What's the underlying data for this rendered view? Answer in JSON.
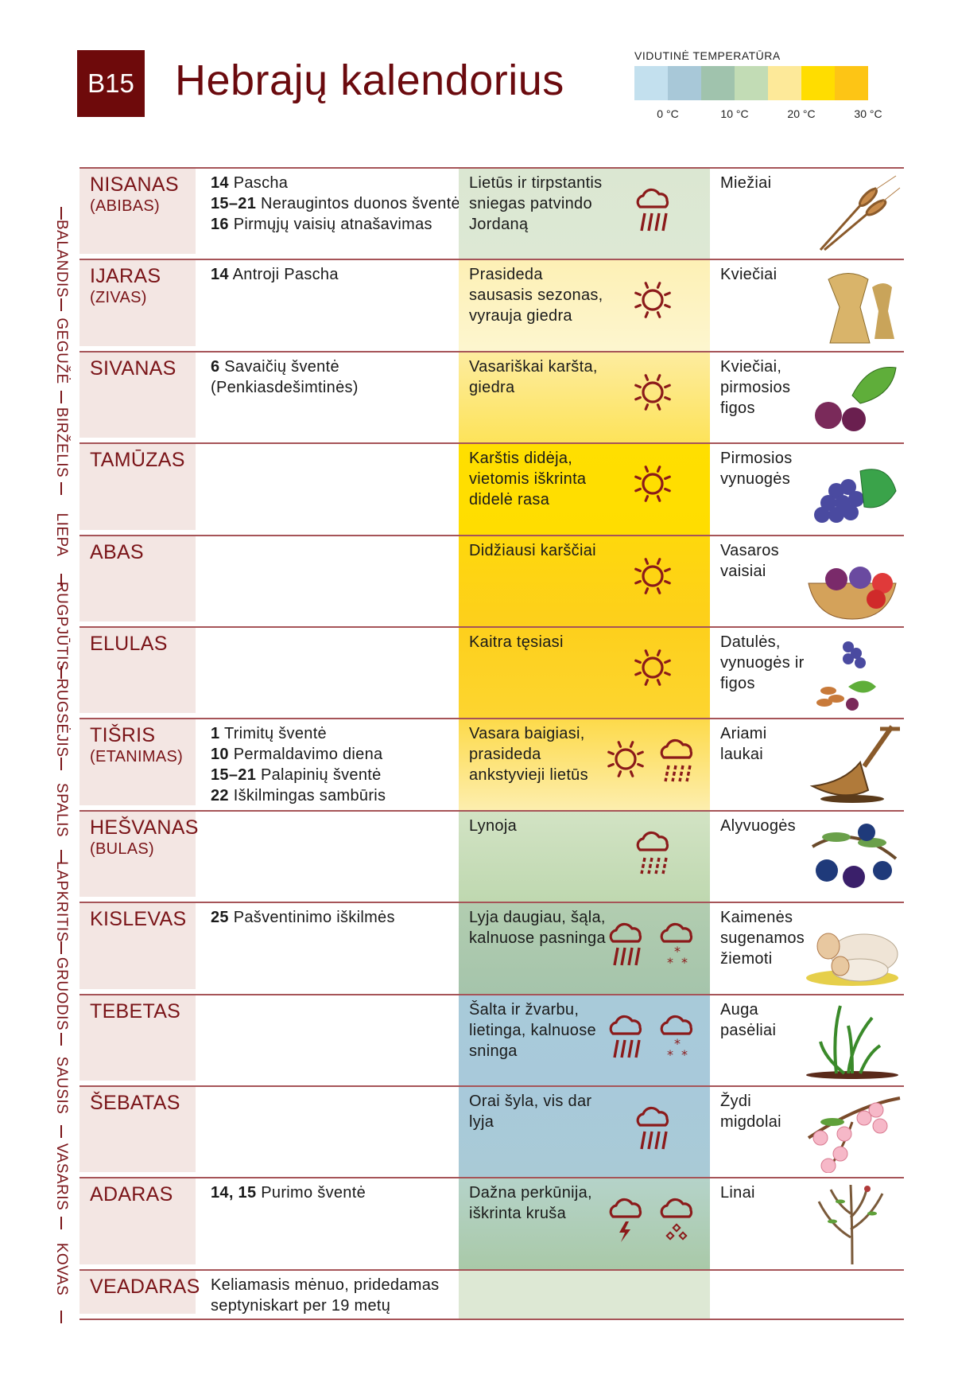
{
  "header": {
    "badge": "B15",
    "title": "Hebrajų kalendorius"
  },
  "legend": {
    "label": "VIDUTINĖ TEMPERATŪRA",
    "colors": [
      "#c3e0ee",
      "#a8c8d8",
      "#a0c3ad",
      "#c2dcb5",
      "#fde999",
      "#ffdd00",
      "#fdc515"
    ],
    "ticks": [
      "0 °C",
      "10 °C",
      "20 °C",
      "30 °C"
    ]
  },
  "gregorian_months": [
    "BALANDIS",
    "GEGUŽĖ",
    "BIRŽELIS",
    "LIEPA",
    "RUGPJŪTIS",
    "RUGSĖJIS",
    "SPALIS",
    "LAPKRITIS",
    "GRUODIS",
    "SAUSIS",
    "VASARIS",
    "KOVAS"
  ],
  "months": [
    {
      "name": "NISANAS",
      "alt": "(ABIBAS)",
      "events": [
        {
          "day": "14",
          "text": "Pascha"
        },
        {
          "day": "15–21",
          "text": "Neraugintos duonos šventė"
        },
        {
          "day": "16",
          "text": "Pirmųjų vaisių atnašavimas"
        }
      ],
      "weather": "Lietūs ir tirpstantis sniegas patvindo Jordaną",
      "weather_icons": [
        "rain-cloud"
      ],
      "colors": [
        "#dbe7d2",
        "#dde8d4"
      ],
      "produce": "Miežiai",
      "produce_icon": "barley"
    },
    {
      "name": "IJARAS",
      "alt": "(ZIVAS)",
      "events": [
        {
          "day": "14",
          "text": "Antroji Pascha"
        }
      ],
      "weather": "Prasideda sausasis sezonas, vyrauja giedra",
      "weather_icons": [
        "sun"
      ],
      "colors": [
        "#fdf0b5",
        "#fdf6cf"
      ],
      "produce": "Kviečiai",
      "produce_icon": "wheat-sheaves"
    },
    {
      "name": "SIVANAS",
      "alt": "",
      "events": [
        {
          "day": "6",
          "text": "Savaičių šventė (Penkiasdešimtinės)"
        }
      ],
      "weather": "Vasariškai karšta, giedra",
      "weather_icons": [
        "sun"
      ],
      "colors": [
        "#fdec9f",
        "#fde35a"
      ],
      "produce": "Kviečiai, pirmosios figos",
      "produce_icon": "figs"
    },
    {
      "name": "TAMŪZAS",
      "alt": "",
      "events": [],
      "weather": "Karštis didėja, vietomis iškrinta didelė rasa",
      "weather_icons": [
        "sun"
      ],
      "colors": [
        "#ffdf00",
        "#ffdd00"
      ],
      "produce": "Pirmosios vynuogės",
      "produce_icon": "grapes"
    },
    {
      "name": "ABAS",
      "alt": "",
      "events": [],
      "weather": "Didžiausi karščiai",
      "weather_icons": [
        "sun"
      ],
      "colors": [
        "#fed80c",
        "#fdcf1c"
      ],
      "produce": "Vasaros vaisiai",
      "produce_icon": "fruit-basket"
    },
    {
      "name": "ELULAS",
      "alt": "",
      "events": [],
      "weather": "Kaitra tęsiasi",
      "weather_icons": [
        "sun"
      ],
      "colors": [
        "#fdd01c",
        "#fdd530"
      ],
      "produce": "Datulės, vynuogės ir figos",
      "produce_icon": "dates-grapes-figs"
    },
    {
      "name": "TIŠRIS",
      "alt": "(ETANIMAS)",
      "events": [
        {
          "day": "1",
          "text": "Trimitų šventė"
        },
        {
          "day": "10",
          "text": "Permaldavimo diena"
        },
        {
          "day": "15–21",
          "text": "Palapinių šventė"
        },
        {
          "day": "22",
          "text": "Iškilmingas sambūris"
        }
      ],
      "weather": "Vasara baigiasi, prasideda ankstyvieji lietūs",
      "weather_icons": [
        "sun",
        "drizzle-cloud"
      ],
      "colors": [
        "#fdda4a",
        "#fdeeae"
      ],
      "produce": "Ariami laukai",
      "produce_icon": "plough"
    },
    {
      "name": "HEŠVANAS",
      "alt": "(BULAS)",
      "events": [],
      "weather": "Lynoja",
      "weather_icons": [
        "drizzle-cloud"
      ],
      "colors": [
        "#d2e3c4",
        "#bfd8b0"
      ],
      "produce": "Alyvuogės",
      "produce_icon": "olives"
    },
    {
      "name": "KISLEVAS",
      "alt": "",
      "events": [
        {
          "day": "25",
          "text": "Pašventinimo iškilmės"
        }
      ],
      "weather": "Lyja daugiau, šąla, kalnuose pasninga",
      "weather_icons": [
        "rain-cloud",
        "snow-cloud"
      ],
      "colors": [
        "#b2cdb0",
        "#a5c4ab"
      ],
      "produce": "Kaimenės sugenamos žiemoti",
      "produce_icon": "sheep"
    },
    {
      "name": "TEBETAS",
      "alt": "",
      "events": [],
      "weather": "Šalta ir žvarbu, lietinga, kalnuose sninga",
      "weather_icons": [
        "rain-cloud",
        "snow-cloud"
      ],
      "colors": [
        "#a8cad9",
        "#a8c9da"
      ],
      "produce": "Auga pasėliai",
      "produce_icon": "sprouts"
    },
    {
      "name": "ŠEBATAS",
      "alt": "",
      "events": [],
      "weather": "Orai šyla, vis dar lyja",
      "weather_icons": [
        "rain-cloud"
      ],
      "colors": [
        "#a8c9da",
        "#a9cad6"
      ],
      "produce": "Žydi migdolai",
      "produce_icon": "almond-blossom"
    },
    {
      "name": "ADARAS",
      "alt": "",
      "events": [
        {
          "day": "14, 15",
          "text": "Purimo šventė"
        }
      ],
      "weather": "Dažna perkūnija, iškrinta kruša",
      "weather_icons": [
        "thunder-cloud",
        "hail-cloud"
      ],
      "colors": [
        "#b5d3c9",
        "#a9c9a8"
      ],
      "produce": "Linai",
      "produce_icon": "flax"
    },
    {
      "name": "VEADARAS",
      "alt": "",
      "events": [
        {
          "day": "",
          "text": "Keliamasis mėnuo, pridedamas septyniskart per 19 metų"
        }
      ],
      "weather": "",
      "weather_icons": [],
      "colors": [
        "#dde8d4",
        "#dde8d4"
      ],
      "produce": "",
      "produce_icon": ""
    }
  ]
}
